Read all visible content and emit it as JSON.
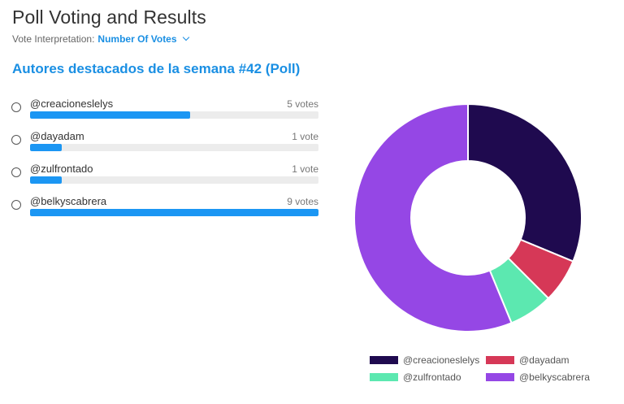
{
  "header": {
    "title": "Poll Voting and Results",
    "vote_interpretation_label": "Vote Interpretation:",
    "vote_interpretation_value": "Number Of Votes"
  },
  "poll": {
    "title": "Autores destacados de la semana #42 (Poll)",
    "options": [
      {
        "label": "@creacioneslelys",
        "count_text": "5 votes",
        "votes": 5
      },
      {
        "label": "@dayadam",
        "count_text": "1 vote",
        "votes": 1
      },
      {
        "label": "@zulfrontado",
        "count_text": "1 vote",
        "votes": 1
      },
      {
        "label": "@belkyscabrera",
        "count_text": "9 votes",
        "votes": 9
      }
    ],
    "max_votes": 9
  },
  "chart_data": {
    "type": "pie",
    "donut": true,
    "categories": [
      "@creacioneslelys",
      "@dayadam",
      "@zulfrontado",
      "@belkyscabrera"
    ],
    "values": [
      5,
      1,
      1,
      9
    ],
    "colors": [
      "#1f0a4f",
      "#d63857",
      "#5ce8b0",
      "#9547e5"
    ],
    "legend_placement": "bottom"
  }
}
